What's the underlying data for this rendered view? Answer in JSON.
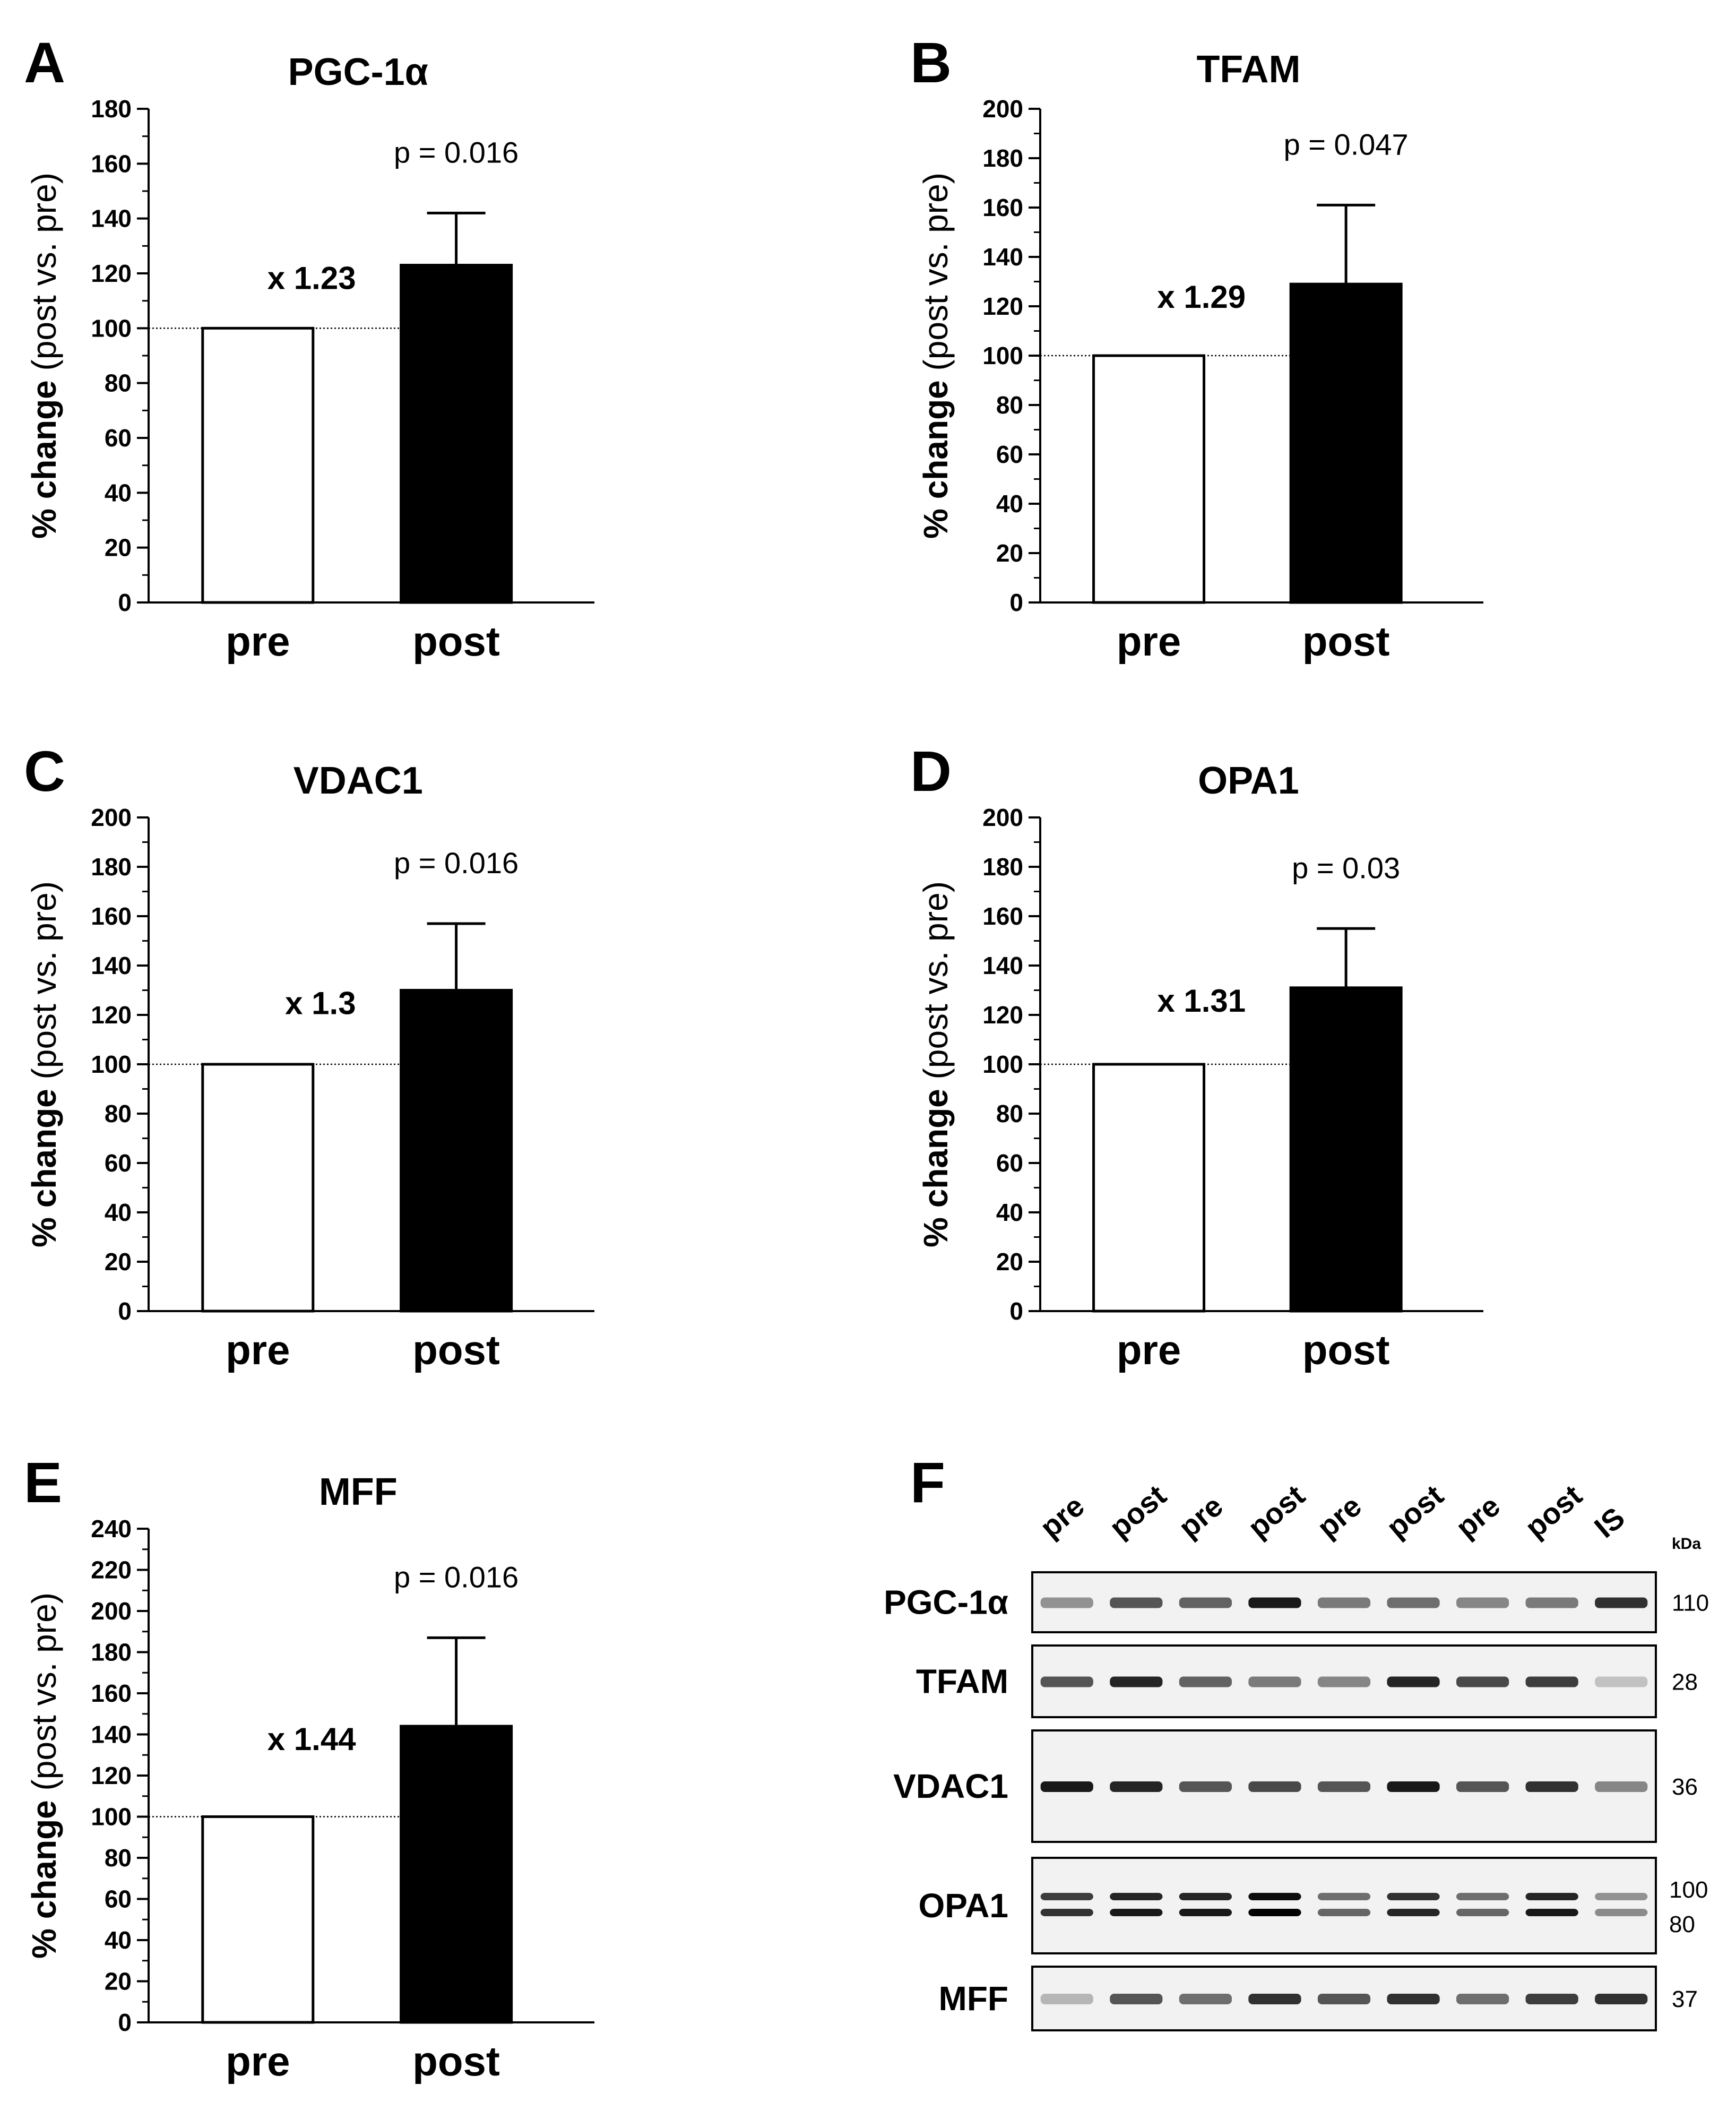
{
  "figure": {
    "axis_ylabel_bold": "% change",
    "axis_ylabel_normal": "(post vs. pre)"
  },
  "chart_data": [
    {
      "panel": "A",
      "type": "bar",
      "title": "PGC-1α",
      "categories": [
        "pre",
        "post"
      ],
      "values": [
        100,
        123
      ],
      "error_bars": [
        0,
        19
      ],
      "reference_line": 100,
      "fold_change": "x 1.23",
      "p_value": "p = 0.016",
      "ylim": [
        0,
        180
      ],
      "major_ticks": [
        0,
        20,
        40,
        60,
        80,
        100,
        120,
        140,
        160,
        180
      ],
      "bar_colors": [
        "#ffffff",
        "#000000"
      ],
      "xlabel": "",
      "ylabel": "% change (post vs. pre)"
    },
    {
      "panel": "B",
      "type": "bar",
      "title": "TFAM",
      "categories": [
        "pre",
        "post"
      ],
      "values": [
        100,
        129
      ],
      "error_bars": [
        0,
        32
      ],
      "reference_line": 100,
      "fold_change": "x 1.29",
      "p_value": "p = 0.047",
      "ylim": [
        0,
        200
      ],
      "major_ticks": [
        0,
        20,
        40,
        60,
        80,
        100,
        120,
        140,
        160,
        180,
        200
      ],
      "bar_colors": [
        "#ffffff",
        "#000000"
      ],
      "xlabel": "",
      "ylabel": "% change (post vs. pre)"
    },
    {
      "panel": "C",
      "type": "bar",
      "title": "VDAC1",
      "categories": [
        "pre",
        "post"
      ],
      "values": [
        100,
        130
      ],
      "error_bars": [
        0,
        27
      ],
      "reference_line": 100,
      "fold_change": "x 1.3",
      "p_value": "p = 0.016",
      "ylim": [
        0,
        200
      ],
      "major_ticks": [
        0,
        20,
        40,
        60,
        80,
        100,
        120,
        140,
        160,
        180,
        200
      ],
      "bar_colors": [
        "#ffffff",
        "#000000"
      ],
      "xlabel": "",
      "ylabel": "% change (post vs. pre)"
    },
    {
      "panel": "D",
      "type": "bar",
      "title": "OPA1",
      "categories": [
        "pre",
        "post"
      ],
      "values": [
        100,
        131
      ],
      "error_bars": [
        0,
        24
      ],
      "reference_line": 100,
      "fold_change": "x 1.31",
      "p_value": "p = 0.03",
      "ylim": [
        0,
        200
      ],
      "major_ticks": [
        0,
        20,
        40,
        60,
        80,
        100,
        120,
        140,
        160,
        180,
        200
      ],
      "bar_colors": [
        "#ffffff",
        "#000000"
      ],
      "xlabel": "",
      "ylabel": "% change (post vs. pre)"
    },
    {
      "panel": "E",
      "type": "bar",
      "title": "MFF",
      "categories": [
        "pre",
        "post"
      ],
      "values": [
        100,
        144
      ],
      "error_bars": [
        0,
        43
      ],
      "reference_line": 100,
      "fold_change": "x 1.44",
      "p_value": "p = 0.016",
      "ylim": [
        0,
        240
      ],
      "major_ticks": [
        0,
        20,
        40,
        60,
        80,
        100,
        120,
        140,
        160,
        180,
        200,
        220,
        240
      ],
      "bar_colors": [
        "#ffffff",
        "#000000"
      ],
      "xlabel": "",
      "ylabel": "% change (post vs. pre)"
    }
  ],
  "western_blot": {
    "panel": "F",
    "lane_labels": [
      "pre",
      "post",
      "pre",
      "post",
      "pre",
      "post",
      "pre",
      "post",
      "IS"
    ],
    "kda_header": "kDa",
    "rows": [
      {
        "protein": "PGC-1α",
        "kda": [
          "110"
        ],
        "intensities": [
          0.45,
          0.7,
          0.65,
          0.95,
          0.55,
          0.6,
          0.5,
          0.55,
          0.85
        ]
      },
      {
        "protein": "TFAM",
        "kda": [
          "28"
        ],
        "intensities": [
          0.7,
          0.9,
          0.65,
          0.55,
          0.5,
          0.9,
          0.75,
          0.8,
          0.25
        ]
      },
      {
        "protein": "VDAC1",
        "kda": [
          "36"
        ],
        "intensities": [
          0.95,
          0.9,
          0.7,
          0.75,
          0.7,
          0.95,
          0.7,
          0.85,
          0.5
        ]
      },
      {
        "protein": "OPA1",
        "kda": [
          "100",
          "80"
        ],
        "intensities": [
          0.8,
          0.9,
          0.9,
          1.0,
          0.6,
          0.85,
          0.6,
          0.9,
          0.45
        ]
      },
      {
        "protein": "MFF",
        "kda": [
          "37"
        ],
        "intensities": [
          0.3,
          0.7,
          0.6,
          0.85,
          0.7,
          0.85,
          0.6,
          0.8,
          0.85
        ]
      }
    ]
  }
}
